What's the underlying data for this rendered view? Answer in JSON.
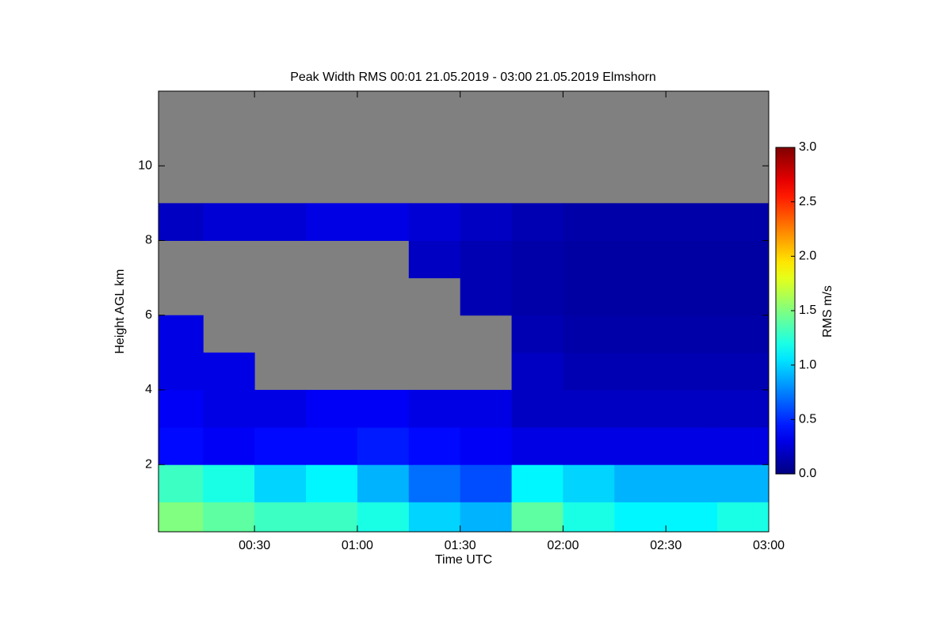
{
  "chart_data": {
    "type": "heatmap",
    "title": "Peak Width RMS   00:01 21.05.2019 - 03:00 21.05.2019 Elmshorn",
    "x_label": "Time UTC",
    "y_label": "Height AGL km",
    "colorbar_label": "RMS m/s",
    "colormap": "jet",
    "missing_color": "#808080",
    "xlim": [
      2,
      180
    ],
    "xticks": [
      {
        "value": 30,
        "label": "00:30"
      },
      {
        "value": 60,
        "label": "01:00"
      },
      {
        "value": 90,
        "label": "01:30"
      },
      {
        "value": 120,
        "label": "02:00"
      },
      {
        "value": 150,
        "label": "02:30"
      },
      {
        "value": 180,
        "label": "03:00"
      }
    ],
    "ylim": [
      0.2,
      12
    ],
    "yticks": [
      2,
      4,
      6,
      8,
      10
    ],
    "clim": [
      0,
      3
    ],
    "cticks": [
      {
        "value": 0,
        "label": "0.0"
      },
      0.5,
      {
        "value": 1,
        "label": "1.0"
      },
      1.5,
      {
        "value": 2,
        "label": "2.0"
      },
      2.5,
      {
        "value": 3,
        "label": "3.0"
      }
    ],
    "x_bins": [
      2,
      15,
      30,
      45,
      60,
      75,
      90,
      105,
      120,
      135,
      150,
      165,
      180
    ],
    "y_bins": [
      0.2,
      1,
      2,
      3,
      4,
      5,
      6,
      7,
      8,
      9,
      10,
      11,
      12
    ],
    "z": [
      [
        1.5,
        1.4,
        1.3,
        1.3,
        1.2,
        1.0,
        0.9,
        1.4,
        1.2,
        1.1,
        1.1,
        1.2
      ],
      [
        1.3,
        1.2,
        1.0,
        1.1,
        0.9,
        0.7,
        0.6,
        1.1,
        1.0,
        0.9,
        0.9,
        0.9
      ],
      [
        0.4,
        0.35,
        0.4,
        0.4,
        0.45,
        0.4,
        0.35,
        0.3,
        0.3,
        0.3,
        0.3,
        0.3
      ],
      [
        0.35,
        0.3,
        0.3,
        0.35,
        0.35,
        0.3,
        0.3,
        0.2,
        0.2,
        0.2,
        0.2,
        0.2
      ],
      [
        0.3,
        0.3,
        null,
        null,
        null,
        null,
        null,
        0.2,
        0.15,
        0.15,
        0.15,
        0.15
      ],
      [
        0.3,
        null,
        null,
        null,
        null,
        null,
        null,
        0.15,
        0.12,
        0.12,
        0.12,
        0.12
      ],
      [
        null,
        null,
        null,
        null,
        null,
        null,
        0.15,
        0.12,
        0.1,
        0.1,
        0.1,
        0.1
      ],
      [
        null,
        null,
        null,
        null,
        null,
        0.2,
        0.15,
        0.12,
        0.1,
        0.1,
        0.1,
        0.1
      ],
      [
        0.2,
        0.25,
        0.25,
        0.3,
        0.3,
        0.25,
        0.2,
        0.15,
        0.12,
        0.12,
        0.12,
        0.12
      ],
      [
        null,
        null,
        null,
        null,
        null,
        null,
        null,
        null,
        null,
        null,
        null,
        null
      ],
      [
        null,
        null,
        null,
        null,
        null,
        null,
        null,
        null,
        null,
        null,
        null,
        null
      ],
      [
        null,
        null,
        null,
        null,
        null,
        null,
        null,
        null,
        null,
        null,
        null,
        null
      ]
    ]
  }
}
